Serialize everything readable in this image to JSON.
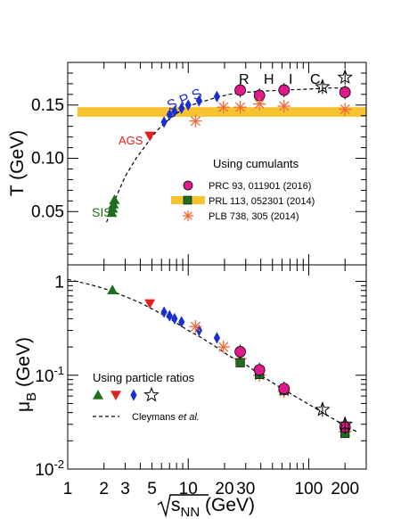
{
  "chart_data": [
    {
      "type": "scatter",
      "panel": "top",
      "ylabel": "T (GeV)",
      "xscale": "log",
      "xlim": [
        1,
        300
      ],
      "ylim": [
        0,
        0.19
      ],
      "yticks": [
        "0.05",
        "0.10",
        "0.15"
      ],
      "annotations": {
        "sis": "SIS",
        "ags": "AGS",
        "sps": "S P S",
        "rhic": [
          "R",
          "H",
          "I",
          "C"
        ]
      },
      "legend": {
        "title": "Using cumulants",
        "entries": [
          {
            "label": "PRC 93, 011901 (2016)",
            "color": "#e0198c",
            "marker": "circle"
          },
          {
            "label": "PRL 113, 052301 (2014)",
            "color": "#f7c431",
            "marker": "band"
          },
          {
            "label": "PLB 738, 305 (2014)",
            "color": "#f06a38",
            "marker": "asterisk"
          }
        ]
      },
      "band_prl": {
        "x": [
          1.2,
          300
        ],
        "y_low": 0.139,
        "y_high": 0.148,
        "color": "#f7c431"
      },
      "series": [
        {
          "name": "fit",
          "style": "dashed",
          "x": [
            2.1,
            2.4,
            3,
            3.7,
            4.5,
            5.5,
            6.5,
            8,
            10,
            13,
            17,
            22,
            30,
            40,
            60,
            100,
            150,
            200
          ],
          "y": [
            0.04,
            0.058,
            0.083,
            0.1,
            0.113,
            0.126,
            0.134,
            0.142,
            0.149,
            0.153,
            0.157,
            0.16,
            0.162,
            0.163,
            0.164,
            0.165,
            0.166,
            0.166
          ]
        },
        {
          "name": "sis",
          "color": "#1f6e1f",
          "marker": "triangle",
          "x": [
            2.32,
            2.36,
            2.4,
            2.44
          ],
          "y": [
            0.049,
            0.053,
            0.057,
            0.061
          ]
        },
        {
          "name": "ags",
          "color": "#e0201e",
          "marker": "triangle-down",
          "x": [
            4.8
          ],
          "y": [
            0.121
          ]
        },
        {
          "name": "sps",
          "color": "#1a2fd1",
          "marker": "diamond",
          "x": [
            6.3,
            7.0,
            7.7,
            8.8,
            10.0,
            12.3,
            17.3
          ],
          "y": [
            0.134,
            0.141,
            0.144,
            0.147,
            0.15,
            0.154,
            0.158
          ]
        },
        {
          "name": "prc_circles",
          "color": "#e0198c",
          "marker": "circle",
          "x": [
            27,
            39,
            62.4,
            200
          ],
          "y": [
            0.164,
            0.159,
            0.164,
            0.162
          ]
        },
        {
          "name": "plb_asterisks",
          "color": "#f06a38",
          "marker": "asterisk",
          "x": [
            11.5,
            19.6,
            27,
            39,
            62.4,
            200
          ],
          "y": [
            0.135,
            0.148,
            0.148,
            0.151,
            0.149,
            0.146
          ]
        },
        {
          "name": "rhic_stars",
          "color": "#000000",
          "marker": "star-open",
          "x": [
            130,
            200
          ],
          "y": [
            0.167,
            0.176
          ]
        }
      ]
    },
    {
      "type": "scatter",
      "panel": "bottom",
      "ylabel": "μB (GeV)",
      "xlabel": "√sNN (GeV)",
      "xscale": "log",
      "yscale": "log",
      "xlim": [
        1,
        300
      ],
      "ylim": [
        0.01,
        1.5
      ],
      "xticks": [
        "1",
        "2",
        "3",
        "5",
        "10",
        "20",
        "30",
        "100",
        "200"
      ],
      "yticks": [
        "1",
        "10-1",
        "10-2"
      ],
      "legend": {
        "title": "Using particle ratios",
        "markers": [
          {
            "marker": "triangle",
            "color": "#1f6e1f"
          },
          {
            "marker": "triangle-down",
            "color": "#e0201e"
          },
          {
            "marker": "diamond",
            "color": "#1a2fd1"
          },
          {
            "marker": "star-open",
            "color": "#000000"
          }
        ],
        "line_label_pre": "Cleymans ",
        "line_label_it": "et al."
      },
      "series": [
        {
          "name": "fit",
          "style": "dashed",
          "x": [
            1,
            1.5,
            2,
            2.5,
            3,
            4,
            5,
            6,
            7,
            8,
            10,
            13,
            17,
            22,
            30,
            40,
            60,
            80,
            100,
            130,
            150,
            200,
            250
          ],
          "y": [
            1.05,
            0.93,
            0.84,
            0.76,
            0.69,
            0.59,
            0.51,
            0.45,
            0.4,
            0.36,
            0.3,
            0.25,
            0.2,
            0.16,
            0.13,
            0.1,
            0.072,
            0.058,
            0.049,
            0.04,
            0.036,
            0.029,
            0.025
          ]
        },
        {
          "name": "sis",
          "color": "#1f6e1f",
          "marker": "triangle",
          "x": [
            2.35
          ],
          "y": [
            0.81
          ]
        },
        {
          "name": "ags",
          "color": "#e0201e",
          "marker": "triangle-down",
          "x": [
            4.8
          ],
          "y": [
            0.58
          ]
        },
        {
          "name": "sps",
          "color": "#1a2fd1",
          "marker": "diamond",
          "x": [
            6.3,
            7.0,
            7.7,
            8.8,
            12.3,
            17.3
          ],
          "y": [
            0.47,
            0.43,
            0.4,
            0.37,
            0.3,
            0.25
          ]
        },
        {
          "name": "plb_asterisks",
          "color": "#f06a38",
          "marker": "asterisk",
          "x": [
            11.5,
            19.6,
            27,
            39,
            62.4,
            200
          ],
          "y": [
            0.33,
            0.2,
            0.15,
            0.1,
            0.067,
            0.025
          ]
        },
        {
          "name": "prl_squares",
          "color": "#1f6e1f",
          "marker": "square",
          "x": [
            27,
            39,
            62.4,
            200
          ],
          "y": [
            0.136,
            0.102,
            0.069,
            0.024
          ]
        },
        {
          "name": "prc_circles",
          "color": "#e0198c",
          "marker": "circle",
          "x": [
            27,
            39,
            62.4,
            200
          ],
          "y": [
            0.178,
            0.114,
            0.072,
            0.028
          ]
        },
        {
          "name": "rhic_stars",
          "color": "#000000",
          "marker": "star-open",
          "x": [
            130,
            200
          ],
          "y": [
            0.043,
            0.03
          ]
        }
      ]
    }
  ]
}
